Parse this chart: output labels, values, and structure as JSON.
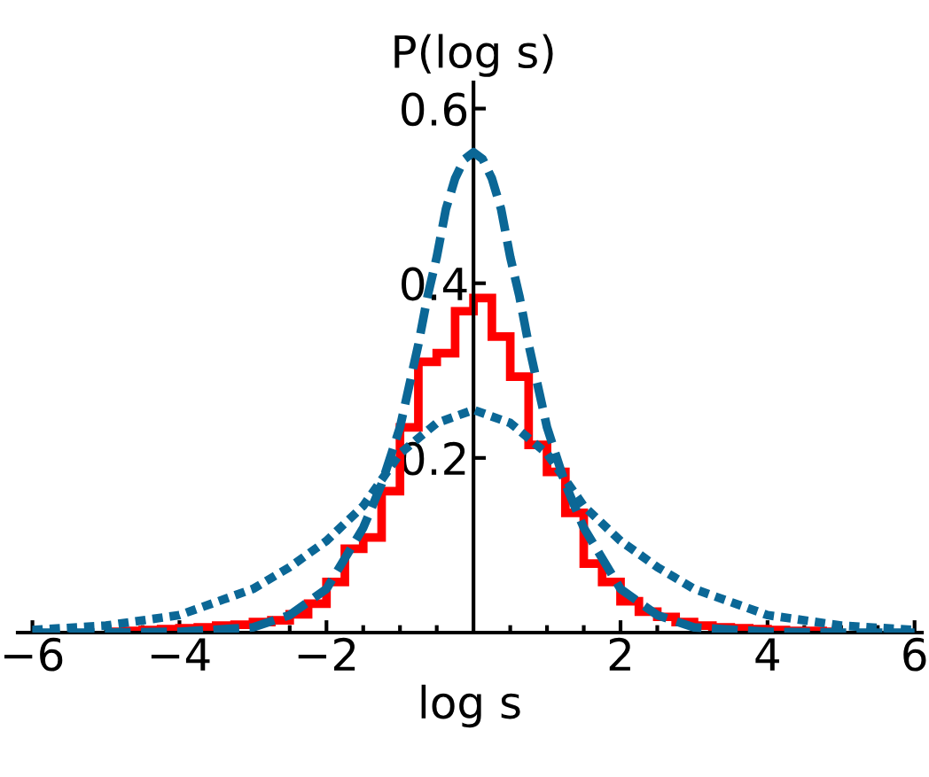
{
  "chart_data": {
    "type": "histogram",
    "xlabel": "log s",
    "ylabel": "P(log s)",
    "color": "#ff0000",
    "bins": [
      -5,
      -4.75,
      -4.5,
      -4.25,
      -4,
      -3.75,
      -3.5,
      -3.25,
      -3,
      -2.75,
      -2.5,
      -2.25,
      -2,
      -1.75,
      -1.5,
      -1.25,
      -1,
      -0.75,
      -0.5,
      -0.25,
      0,
      0.25,
      0.5,
      0.75,
      1,
      1.25,
      1.5,
      1.75,
      2,
      2.25,
      2.5,
      2.75,
      3,
      3.25,
      3.5,
      3.75,
      4,
      4.25,
      4.5,
      4.75,
      5
    ],
    "values": [
      0.001,
      0.002,
      0.003,
      0.004,
      0.005,
      0.006,
      0.008,
      0.009,
      0.012,
      0.014,
      0.021,
      0.033,
      0.058,
      0.096,
      0.109,
      0.162,
      0.235,
      0.31,
      0.32,
      0.368,
      0.383,
      0.339,
      0.293,
      0.215,
      0.184,
      0.137,
      0.079,
      0.058,
      0.036,
      0.024,
      0.018,
      0.012,
      0.008,
      0.006,
      0.005,
      0.004,
      0.003,
      0.002,
      0.002,
      0.001
    ],
    "series": [
      {
        "type": "line",
        "line_style": "dashed",
        "color": "#0b6796",
        "x": [
          -6,
          -5,
          -4,
          -3,
          -2.5,
          -2,
          -1.5,
          -1.25,
          -1,
          -0.75,
          -0.625,
          -0.5,
          -0.375,
          -0.25,
          -0.125,
          0,
          0.125,
          0.25,
          0.375,
          0.5,
          0.625,
          0.75,
          1,
          1.25,
          1.5,
          2,
          2.5,
          3,
          4,
          5,
          6
        ],
        "values": [
          0,
          0,
          0.001,
          0.006,
          0.02,
          0.05,
          0.12,
          0.17,
          0.235,
          0.33,
          0.385,
          0.43,
          0.485,
          0.52,
          0.542,
          0.55,
          0.542,
          0.52,
          0.485,
          0.43,
          0.385,
          0.33,
          0.235,
          0.17,
          0.12,
          0.05,
          0.02,
          0.006,
          0.001,
          0,
          0
        ]
      },
      {
        "type": "line",
        "line_style": "dotted",
        "color": "#0b6796",
        "x": [
          -6,
          -5,
          -4,
          -3,
          -2.5,
          -2,
          -1.5,
          -1,
          -0.5,
          0,
          0.5,
          1,
          1.5,
          2,
          2.5,
          3,
          4,
          5,
          6
        ],
        "values": [
          0.003,
          0.008,
          0.02,
          0.05,
          0.075,
          0.105,
          0.145,
          0.205,
          0.24,
          0.255,
          0.24,
          0.205,
          0.145,
          0.105,
          0.075,
          0.05,
          0.02,
          0.008,
          0.003
        ]
      }
    ],
    "xlim": [
      -6.2,
      6.1
    ],
    "ylim": [
      0,
      0.63
    ],
    "xticks": [
      -6,
      {
        "value": -5.5,
        "label": null
      },
      {
        "value": -5,
        "label": null
      },
      {
        "value": -4.5,
        "label": null
      },
      -4,
      {
        "value": -3.5,
        "label": null
      },
      {
        "value": -3,
        "label": null
      },
      {
        "value": -2.5,
        "label": null
      },
      -2,
      {
        "value": -1.5,
        "label": null
      },
      {
        "value": -1,
        "label": null
      },
      {
        "value": -0.5,
        "label": null
      },
      {
        "value": 0.5,
        "label": null
      },
      {
        "value": 1,
        "label": null
      },
      {
        "value": 1.5,
        "label": null
      },
      2,
      {
        "value": 2.5,
        "label": null
      },
      {
        "value": 3,
        "label": null
      },
      {
        "value": 3.5,
        "label": null
      },
      4,
      {
        "value": 4.5,
        "label": null
      },
      {
        "value": 5,
        "label": null
      },
      {
        "value": 5.5,
        "label": null
      },
      6
    ],
    "yticks": [
      0.2,
      0.4,
      0.6
    ],
    "grid": false,
    "legend": false,
    "marker": "none"
  }
}
